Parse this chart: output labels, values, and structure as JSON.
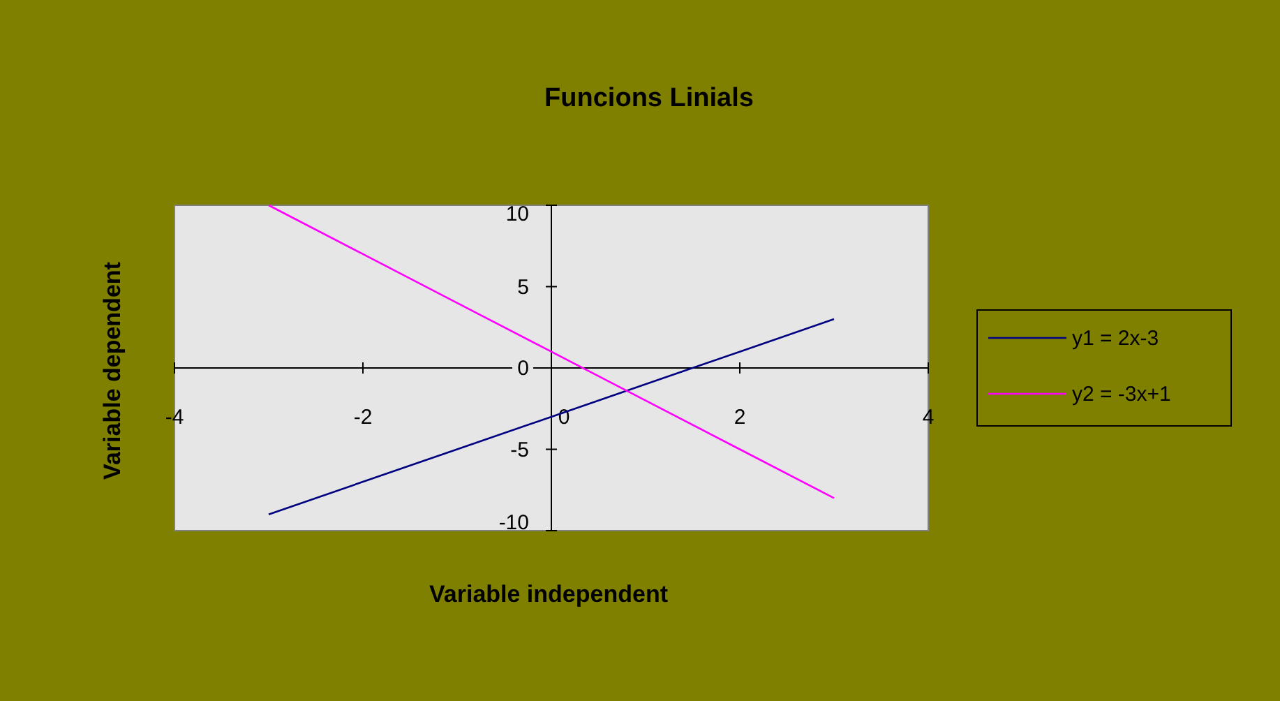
{
  "chart_data": {
    "type": "line",
    "title": "Funcions Linials",
    "xlabel": "Variable independent",
    "ylabel": "Variable dependent",
    "x": [
      -3,
      -2,
      -1,
      0,
      1,
      2,
      3
    ],
    "series": [
      {
        "name": "y1 = 2x-3",
        "color": "#000080",
        "values": [
          -9,
          -7,
          -5,
          -3,
          -1,
          1,
          3
        ]
      },
      {
        "name": "y2 = -3x+1",
        "color": "#ff00ff",
        "values": [
          10,
          7,
          4,
          1,
          -2,
          -5,
          -8
        ]
      }
    ],
    "xlim": [
      -4,
      4
    ],
    "ylim": [
      -10,
      10
    ],
    "xticks": [
      -4,
      -2,
      0,
      2,
      4
    ],
    "yticks": [
      -10,
      -5,
      0,
      5,
      10
    ],
    "grid": false,
    "legend": "right",
    "marker": "none",
    "line_style": "solid"
  }
}
